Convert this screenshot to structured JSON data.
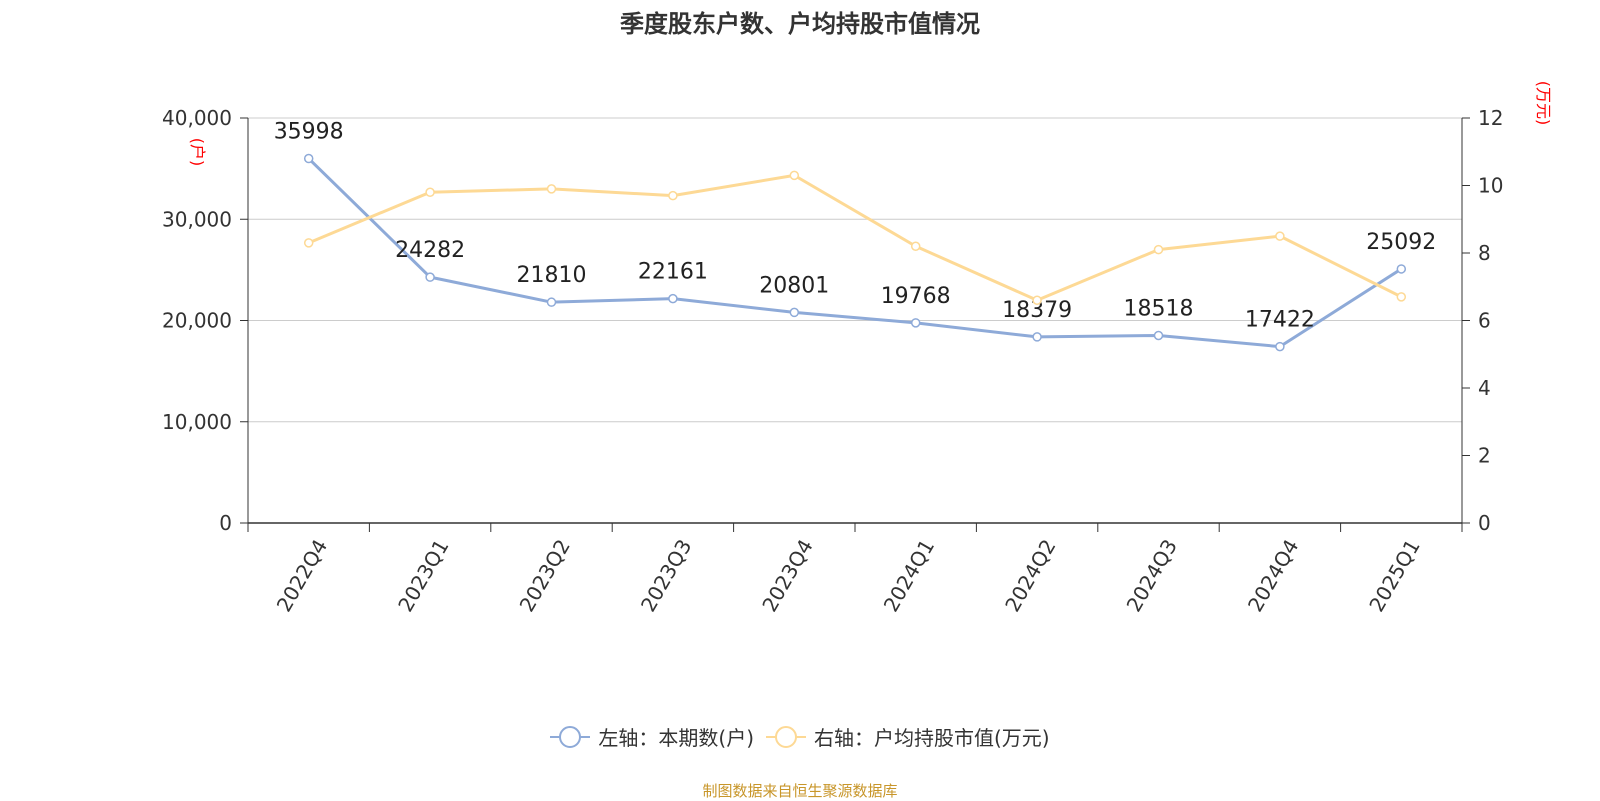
{
  "title": "季度股东户数、户均持股市值情况",
  "source": "制图数据来自恒生聚源数据库",
  "chart_data": {
    "type": "line",
    "categories": [
      "2022Q4",
      "2023Q1",
      "2023Q2",
      "2023Q3",
      "2023Q4",
      "2024Q1",
      "2024Q2",
      "2024Q3",
      "2024Q4",
      "2025Q1"
    ],
    "series": [
      {
        "name": "左轴：本期数(户)",
        "axis": "left",
        "color": "#8eaad8",
        "values": [
          35998,
          24282,
          21810,
          22161,
          20801,
          19768,
          18379,
          18518,
          17422,
          25092
        ],
        "labels": [
          "35998",
          "24282",
          "21810",
          "22161",
          "20801",
          "19768",
          "18379",
          "18518",
          "17422",
          "25092"
        ]
      },
      {
        "name": "右轴：户均持股市值(万元)",
        "axis": "right",
        "color": "#fdd995",
        "values": [
          8.3,
          9.8,
          9.9,
          9.7,
          10.3,
          8.2,
          6.6,
          8.1,
          8.5,
          6.7
        ]
      }
    ],
    "y_left": {
      "label": "(户)",
      "min": 0,
      "max": 40000,
      "ticks": [
        0,
        10000,
        20000,
        30000,
        40000
      ],
      "tick_labels": [
        "0",
        "10,000",
        "20,000",
        "30,000",
        "40,000"
      ]
    },
    "y_right": {
      "label": "(万元)",
      "min": 0,
      "max": 12,
      "ticks": [
        0,
        2,
        4,
        6,
        8,
        10,
        12
      ],
      "tick_labels": [
        "0",
        "2",
        "4",
        "6",
        "8",
        "10",
        "12"
      ]
    },
    "grid": true,
    "legend_position": "bottom"
  },
  "colors": {
    "axis_label": "#ff0000",
    "grid": "#cccccc",
    "axis": "#333333",
    "source": "#c8962a"
  }
}
